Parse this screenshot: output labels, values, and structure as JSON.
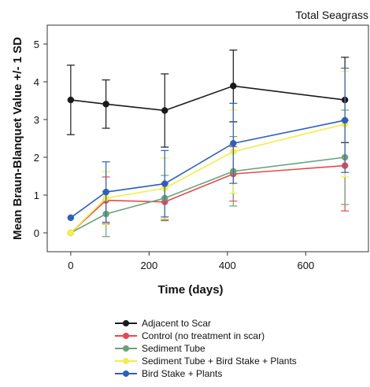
{
  "chart_data": {
    "type": "line",
    "title": "Total Seagrass",
    "xlabel": "Time (days)",
    "ylabel": "Mean Braun-Blanquet Value +/- 1 SD",
    "xlim": [
      -60,
      760
    ],
    "ylim": [
      -0.5,
      5.5
    ],
    "xticks": [
      0,
      200,
      400,
      600
    ],
    "yticks": [
      0,
      1,
      2,
      3,
      4,
      5
    ],
    "grid": false,
    "legend_position": "bottom",
    "series": [
      {
        "name": "Adjacent to Scar",
        "color": "#1a1a1a",
        "x": [
          0,
          90,
          240,
          415,
          700
        ],
        "y": [
          3.52,
          3.41,
          3.24,
          3.89,
          3.52
        ],
        "sd": [
          0.92,
          0.64,
          0.97,
          0.95,
          1.13
        ]
      },
      {
        "name": "Control (no treatment in scar)",
        "color": "#e8484c",
        "x": [
          0,
          90,
          240,
          415,
          700
        ],
        "y": [
          0.0,
          0.86,
          0.82,
          1.56,
          1.78
        ],
        "sd": [
          0.0,
          0.62,
          0.48,
          0.72,
          1.2
        ]
      },
      {
        "name": "Sediment Tube",
        "color": "#6aa278",
        "x": [
          0,
          90,
          240,
          415,
          700
        ],
        "y": [
          0.0,
          0.5,
          0.92,
          1.63,
          2.0
        ],
        "sd": [
          0.0,
          0.6,
          0.6,
          0.92,
          1.25
        ]
      },
      {
        "name": "Sediment Tube + Bird Stake + Plants",
        "color": "#f2ee4a",
        "x": [
          0,
          90,
          240,
          415,
          700
        ],
        "y": [
          0.0,
          0.92,
          1.18,
          2.15,
          2.88
        ],
        "sd": [
          0.0,
          0.7,
          0.8,
          1.1,
          1.4
        ]
      },
      {
        "name": "Bird Stake + Plants",
        "color": "#2d5fbe",
        "x": [
          0,
          90,
          240,
          415,
          700
        ],
        "y": [
          0.4,
          1.08,
          1.3,
          2.37,
          2.98
        ],
        "sd": [
          0.0,
          0.8,
          0.88,
          1.06,
          1.38
        ]
      }
    ]
  }
}
